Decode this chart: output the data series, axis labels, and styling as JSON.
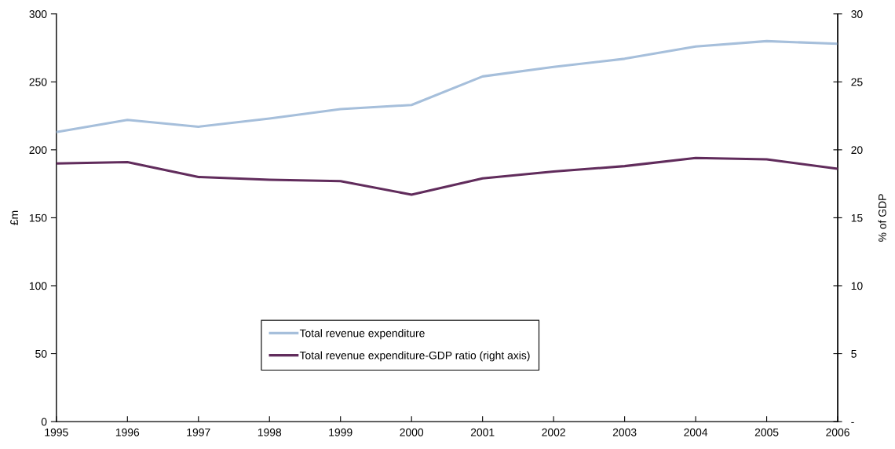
{
  "chart_data": {
    "type": "line",
    "ylabel": "£m",
    "y2label": "% of GDP",
    "x": [
      1995,
      1996,
      1997,
      1998,
      1999,
      2000,
      2001,
      2002,
      2003,
      2004,
      2005,
      2006
    ],
    "xlim": [
      1995,
      2006
    ],
    "xticks": [
      1995,
      1996,
      1997,
      1998,
      1999,
      2000,
      2001,
      2002,
      2003,
      2004,
      2005,
      2006
    ],
    "ylim": [
      0,
      300
    ],
    "yticks": [
      0,
      50,
      100,
      150,
      200,
      250,
      300
    ],
    "y2lim": [
      0,
      30
    ],
    "y2ticks": [
      {
        "value": 0,
        "label": "-"
      },
      5,
      10,
      15,
      20,
      25,
      30
    ],
    "series": [
      {
        "name": "Total revenue expenditure",
        "color": "#a6bfdb",
        "values": [
          213,
          222,
          217,
          223,
          230,
          233,
          254,
          261,
          267,
          276,
          280,
          278
        ]
      },
      {
        "name": "Total revenue expenditure-GDP ratio (right axis)",
        "color": "#612c5c",
        "axis": "y2",
        "values": [
          19.0,
          19.1,
          18.0,
          17.8,
          17.7,
          16.7,
          17.9,
          18.4,
          18.8,
          19.4,
          19.3,
          18.6
        ]
      }
    ],
    "legend": "bottom"
  }
}
